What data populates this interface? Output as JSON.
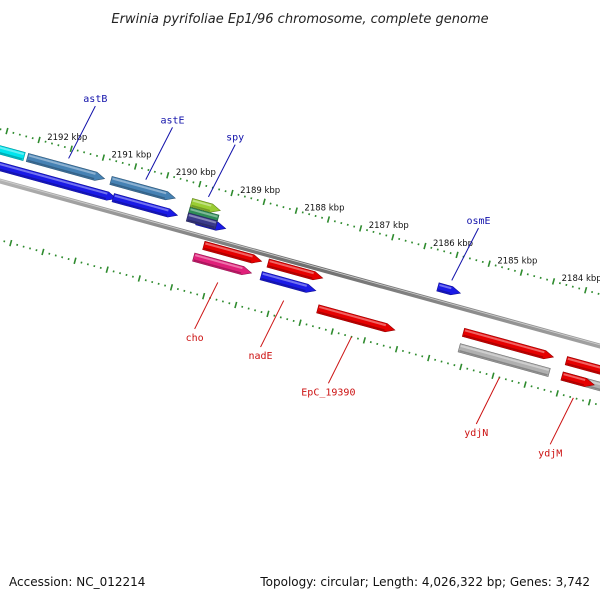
{
  "title": "Erwinia pyrifoliae Ep1/96 chromosome, complete genome",
  "footer": {
    "accession": "Accession: NC_012214",
    "summary": "Topology: circular; Length: 4,026,322 bp; Genes: 3,742"
  },
  "colors": {
    "backbone": "#7a7a7a",
    "tick": "#2e8b2e",
    "label_top": "#1111aa",
    "label_bottom": "#cc1111"
  },
  "ruler": {
    "unit": "kbp",
    "ticks": [
      {
        "kbp": 2192,
        "label": "2192 kbp"
      },
      {
        "kbp": 2191,
        "label": "2191 kbp"
      },
      {
        "kbp": 2190,
        "label": "2190 kbp"
      },
      {
        "kbp": 2189,
        "label": "2189 kbp"
      },
      {
        "kbp": 2188,
        "label": "2188 kbp"
      },
      {
        "kbp": 2187,
        "label": "2187 kbp"
      },
      {
        "kbp": 2186,
        "label": "2186 kbp"
      },
      {
        "kbp": 2185,
        "label": "2185 kbp"
      },
      {
        "kbp": 2184,
        "label": "2184 kbp"
      }
    ]
  },
  "genes": [
    {
      "name": "astB",
      "strand": "top",
      "row": "outer",
      "start_kbp": 2192.6,
      "end_kbp": 2191.4,
      "color": "#4682b4"
    },
    {
      "name": "astE",
      "strand": "top",
      "row": "outer",
      "start_kbp": 2191.3,
      "end_kbp": 2190.3,
      "color": "#4682b4"
    },
    {
      "name": "spy",
      "strand": "top",
      "row": "outer",
      "start_kbp": 2190.05,
      "end_kbp": 2189.6,
      "color": "#9acd32"
    },
    {
      "name": "cho",
      "strand": "bottom",
      "row": "inner",
      "start_kbp": 2189.8,
      "end_kbp": 2188.9,
      "color": "#e0207a"
    },
    {
      "name": "nadE",
      "strand": "bottom",
      "row": "inner",
      "start_kbp": 2188.75,
      "end_kbp": 2187.9,
      "color": "#1a1ae6"
    },
    {
      "name": "EpC_19390",
      "strand": "bottom",
      "row": "outer",
      "start_kbp": 2187.8,
      "end_kbp": 2186.6,
      "color": "#e60000"
    },
    {
      "name": "osmE",
      "strand": "top",
      "row": "inner",
      "start_kbp": 2186.15,
      "end_kbp": 2185.8,
      "color": "#1a1ae6"
    },
    {
      "name": "ydjN",
      "strand": "bottom",
      "row": "outer",
      "start_kbp": 2185.6,
      "end_kbp": 2184.2,
      "color": "#e60000"
    },
    {
      "name": "ydjM",
      "strand": "bottom",
      "row": "outer",
      "start_kbp": 2184.0,
      "end_kbp": 2183.5,
      "color": "#e60000"
    }
  ]
}
